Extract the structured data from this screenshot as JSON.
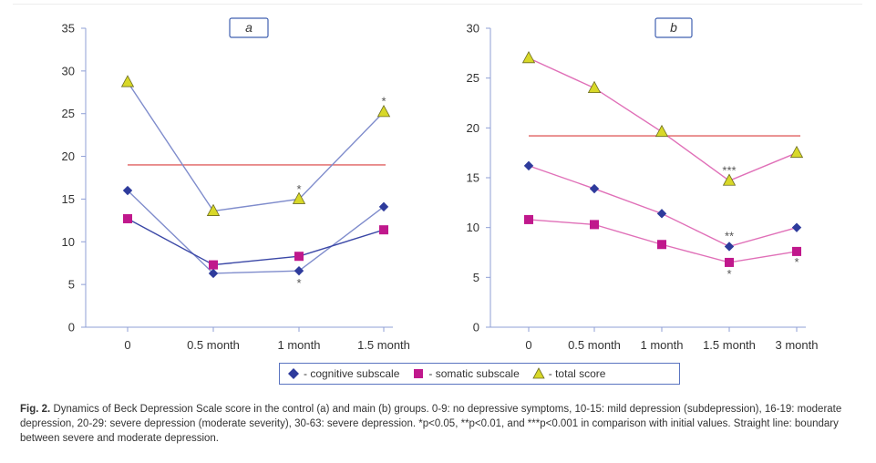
{
  "chart_data": [
    {
      "type": "line",
      "panel_label": "a",
      "categories": [
        "0",
        "0.5 month",
        "1 month",
        "1.5 month"
      ],
      "ylim": [
        0,
        35
      ],
      "yticks": [
        0,
        5,
        10,
        15,
        20,
        25,
        30,
        35
      ],
      "boundary_line": 19,
      "series": [
        {
          "name": "- cognitive subscale",
          "marker": "diamond",
          "color": "#2e3b9c",
          "line_color": "#7f8ccc",
          "values": [
            16.0,
            6.3,
            6.6,
            14.1
          ]
        },
        {
          "name": "- somatic subscale",
          "marker": "square",
          "color": "#c0188c",
          "line_color": "#3a47a6",
          "values": [
            12.7,
            7.3,
            8.3,
            11.4
          ]
        },
        {
          "name": "- total score",
          "marker": "triangle",
          "color": "#d8d828",
          "line_color": "#7f8ccc",
          "values": [
            28.7,
            13.6,
            15.0,
            25.2
          ]
        }
      ],
      "annotations": [
        {
          "category_index": 2,
          "y": 16.1,
          "text": "*"
        },
        {
          "category_index": 2,
          "y": 5.1,
          "text": "*"
        },
        {
          "category_index": 3,
          "y": 26.4,
          "text": "*"
        }
      ]
    },
    {
      "type": "line",
      "panel_label": "b",
      "categories": [
        "0",
        "0.5 month",
        "1 month",
        "1.5 month",
        "3 month"
      ],
      "ylim": [
        0,
        30
      ],
      "yticks": [
        0,
        5,
        10,
        15,
        20,
        25,
        30
      ],
      "boundary_line": 19.2,
      "series": [
        {
          "name": "- cognitive subscale",
          "marker": "diamond",
          "color": "#2e3b9c",
          "line_color": "#e070b8",
          "values": [
            16.2,
            13.9,
            11.4,
            8.1,
            10.0
          ]
        },
        {
          "name": "- somatic subscale",
          "marker": "square",
          "color": "#c0188c",
          "line_color": "#e070b8",
          "values": [
            10.8,
            10.3,
            8.3,
            6.5,
            7.6
          ]
        },
        {
          "name": "- total score",
          "marker": "triangle",
          "color": "#d8d828",
          "line_color": "#e070b8",
          "values": [
            27.0,
            24.0,
            19.6,
            14.7,
            17.5
          ]
        }
      ],
      "annotations": [
        {
          "category_index": 3,
          "y": 15.7,
          "text": "***"
        },
        {
          "category_index": 3,
          "y": 9.1,
          "text": "**"
        },
        {
          "category_index": 3,
          "y": 5.3,
          "text": "*"
        },
        {
          "category_index": 4,
          "y": 6.5,
          "text": "*"
        }
      ]
    }
  ],
  "legend": {
    "items": [
      {
        "label": "- cognitive subscale",
        "marker": "diamond"
      },
      {
        "label": "- somatic subscale",
        "marker": "square"
      },
      {
        "label": "- total score",
        "marker": "triangle"
      }
    ]
  },
  "caption": {
    "fig": "Fig. 2.",
    "text": "Dynamics of Beck Depression Scale score in the control (a) and main (b) groups. 0-9: no depressive symptoms, 10-15: mild depression (subdepression), 16-19: moderate depression, 20-29: severe depression (moderate severity), 30-63: severe depression. *p<0.05, **p<0.01, and ***p<0.001 in comparison with initial values. Straight line: boundary between severe and moderate depression."
  },
  "colors": {
    "axis": "#8f9fd6",
    "boundary": "#e06060",
    "label_box_border": "#4060b0",
    "legend_border": "#5a74c0"
  }
}
